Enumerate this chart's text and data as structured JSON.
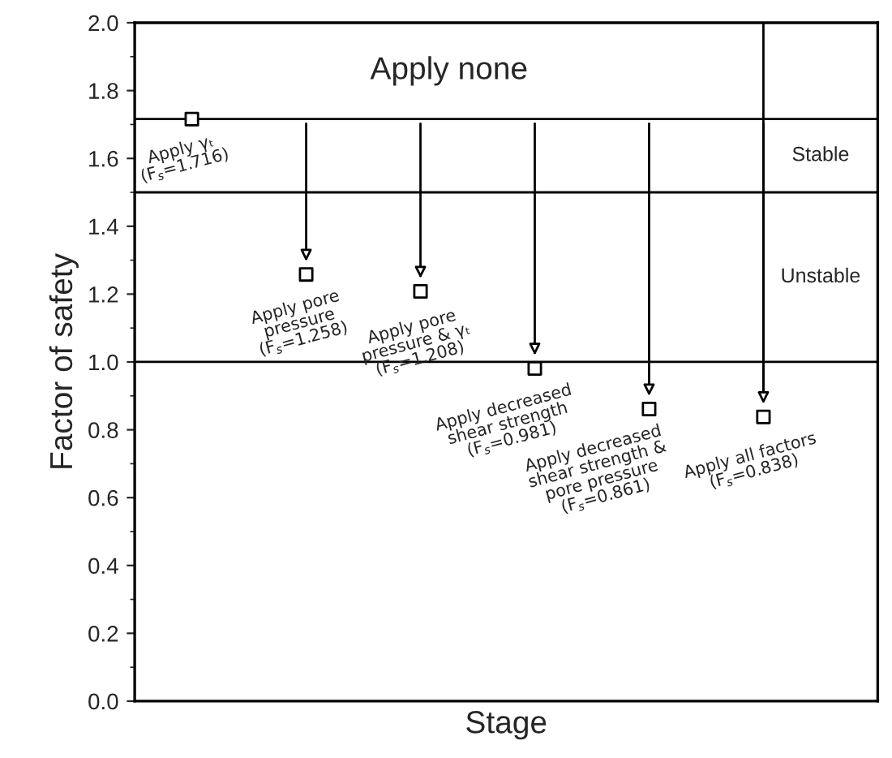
{
  "chart_data": {
    "type": "scatter",
    "xlabel": "Stage",
    "ylabel": "Factor of safety",
    "categories": [
      null,
      null,
      null,
      null,
      null,
      null
    ],
    "series": [
      {
        "color": "#000000",
        "values": [
          1.716,
          1.258,
          1.208,
          0.981,
          0.861,
          0.838
        ]
      }
    ],
    "marker": "square",
    "ylim": [
      0,
      2.0
    ],
    "yticks": [
      {
        "value": 0,
        "label": "0.0"
      },
      0.2,
      0.4,
      0.6,
      0.8,
      {
        "value": 1,
        "label": "1.0"
      },
      1.2,
      1.4,
      1.6,
      1.8,
      {
        "value": 2,
        "label": "2.0"
      }
    ],
    "tick_labels": "y",
    "grid": false,
    "ref_lines": [
      {
        "axis": "y",
        "value": 1.716,
        "label": "Apply none"
      },
      {
        "axis": "y",
        "value": 1.5
      },
      {
        "axis": "y",
        "value": 1.0
      }
    ],
    "annotations": [
      "Apply γₜ\n(F$_{s}$=1.716)",
      "Apply pore\npressure\n(F$_{s}$=1.258)",
      "Apply pore\npressure & γₜ\n(F$_{s}$=1.208)",
      "Apply decreased\nshear strength\n(F$_{s}$=0.981)",
      "Apply decreased\nshear strength &\npore pressure\n(F$_{s}$=0.861)",
      "Apply all factors\n(F$_{s}$=0.838)",
      "Stable",
      "Unstable"
    ]
  }
}
